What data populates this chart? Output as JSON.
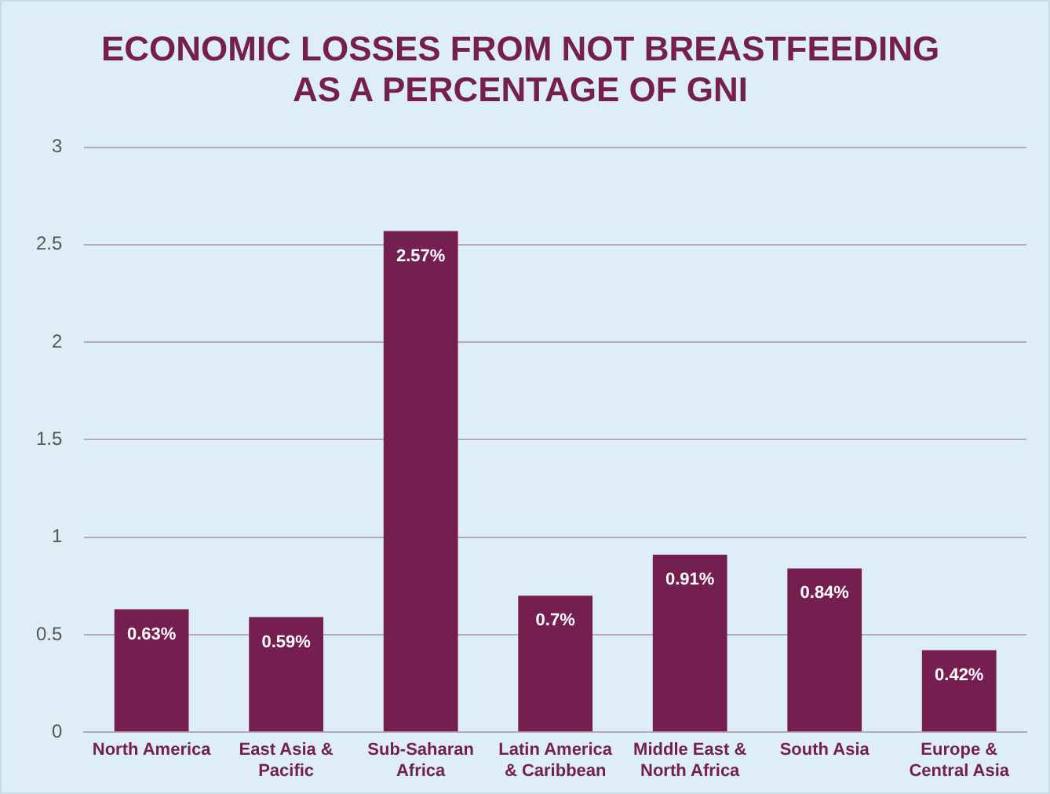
{
  "chart_data": {
    "type": "bar",
    "title": "ECONOMIC LOSSES FROM NOT BREASTFEEDING AS A PERCENTAGE OF GNI",
    "categories": [
      "North America",
      "East Asia & Pacific",
      "Sub-Saharan Africa",
      "Latin America & Caribbean",
      "Middle East & North Africa",
      "South Asia",
      "Europe & Central Asia"
    ],
    "values": [
      0.63,
      0.59,
      2.57,
      0.7,
      0.91,
      0.84,
      0.42
    ],
    "value_labels": [
      "0.63%",
      "0.59%",
      "2.57%",
      "0.7%",
      "0.91%",
      "0.84%",
      "0.42%"
    ],
    "color": "#741f50",
    "ylim": [
      0,
      3
    ],
    "yticks": [
      0,
      0.5,
      1,
      1.5,
      2,
      2.5,
      3
    ],
    "grid": "y",
    "legend": false
  }
}
